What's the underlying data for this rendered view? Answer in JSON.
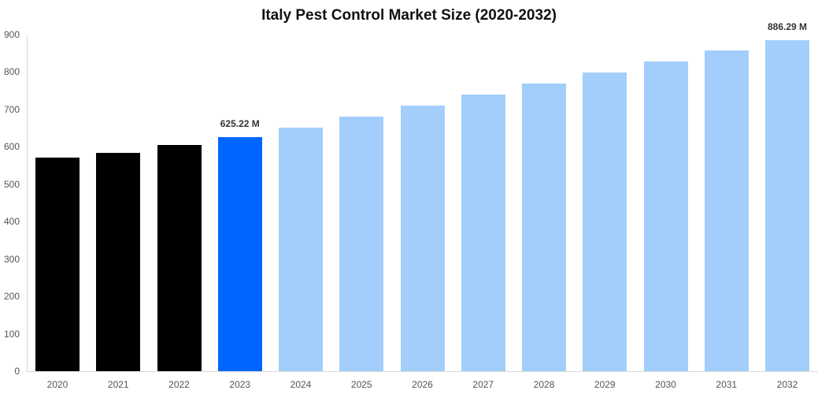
{
  "chart_data": {
    "type": "bar",
    "title": "Italy Pest Control Market Size (2020-2032)",
    "xlabel": "",
    "ylabel": "",
    "ylim": [
      0,
      900
    ],
    "yticks": [
      0,
      100,
      200,
      300,
      400,
      500,
      600,
      700,
      800,
      900
    ],
    "grid": false,
    "legend": null,
    "categories": [
      "2020",
      "2021",
      "2022",
      "2023",
      "2024",
      "2025",
      "2026",
      "2027",
      "2028",
      "2029",
      "2030",
      "2031",
      "2032"
    ],
    "values": [
      571,
      584,
      605,
      625.22,
      651,
      681,
      710,
      740,
      769,
      799,
      828,
      858,
      886.29
    ],
    "bar_colors": [
      "#000000",
      "#000000",
      "#000000",
      "#0066ff",
      "#a3cefc",
      "#a3cefc",
      "#a3cefc",
      "#a3cefc",
      "#a3cefc",
      "#a3cefc",
      "#a3cefc",
      "#a3cefc",
      "#a3cefc"
    ],
    "annotations": [
      {
        "category": "2023",
        "text": "625.22 M"
      },
      {
        "category": "2032",
        "text": "886.29 M"
      }
    ]
  }
}
